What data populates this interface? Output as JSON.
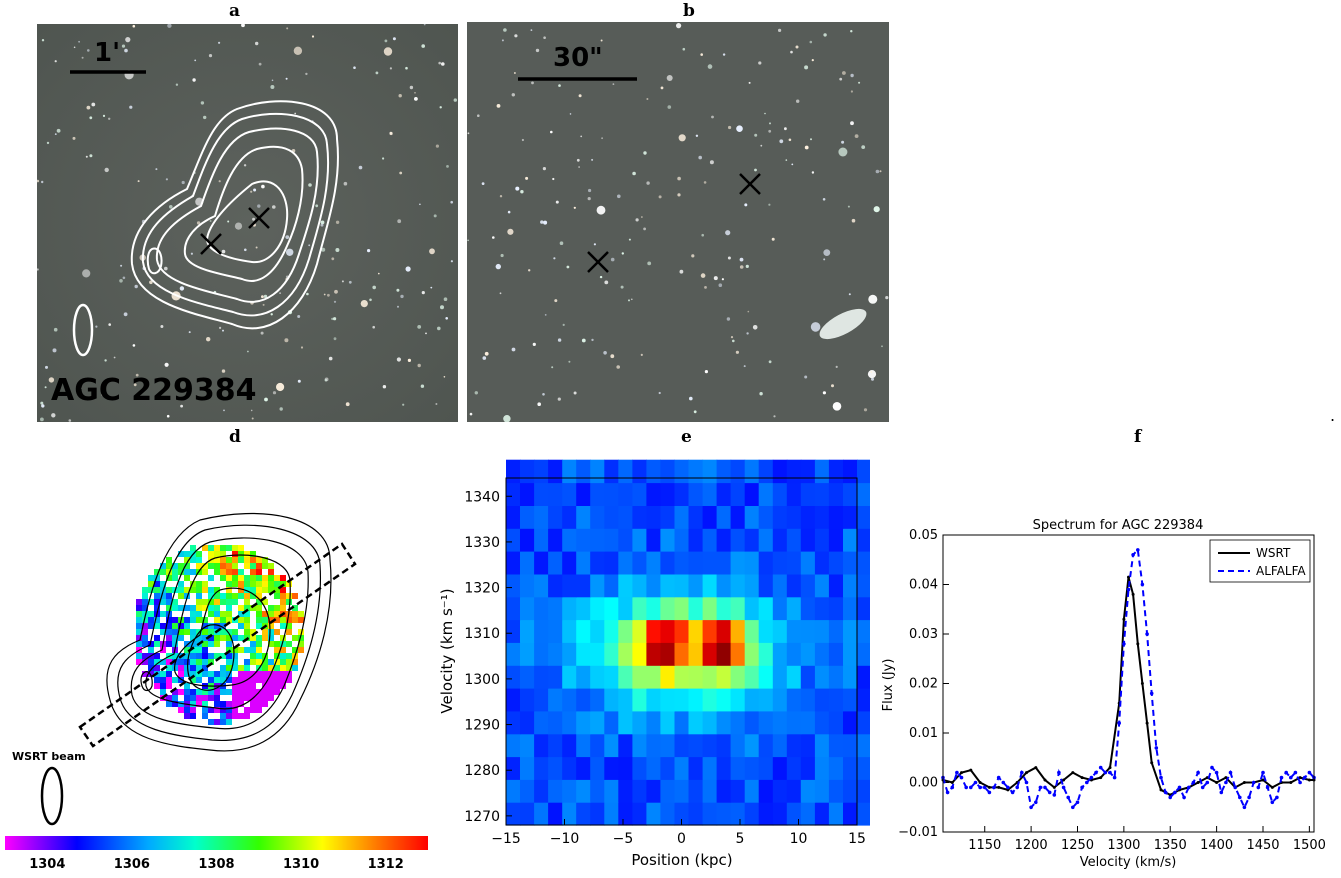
{
  "panel_labels": {
    "a": "a",
    "b": "b",
    "d": "d",
    "e": "e",
    "f": "f"
  },
  "panel_a": {
    "scale_label": "1'",
    "object_label": "AGC 229384"
  },
  "panel_b": {
    "scale_label": "30\""
  },
  "stray_mark": ".",
  "panel_d": {
    "beam_label": "WSRT beam",
    "colorbar_ticks": [
      "1304",
      "1306",
      "1308",
      "1310",
      "1312"
    ],
    "colorbar_range": [
      1303,
      1313
    ]
  },
  "panel_e": {
    "xlabel": "Position (kpc)",
    "ylabel": "Velocity (km s⁻¹)",
    "x_range": [
      -15,
      15
    ],
    "y_range": [
      1268,
      1344
    ],
    "x_ticks": [
      -15,
      -10,
      -5,
      0,
      5,
      10,
      15
    ],
    "x_tick_labels": [
      "−15",
      "−10",
      "−5",
      "0",
      "5",
      "10",
      "15"
    ],
    "y_ticks": [
      1270,
      1280,
      1290,
      1300,
      1310,
      1320,
      1330,
      1340
    ],
    "y_tick_labels": [
      "1270",
      "1280",
      "1290",
      "1300",
      "1310",
      "1320",
      "1330",
      "1340"
    ]
  },
  "chart_data": {
    "type": "line",
    "title": "Spectrum for AGC 229384",
    "xlabel": "Velocity (km/s)",
    "ylabel": "Flux (Jy)",
    "xlim": [
      1105,
      1505
    ],
    "ylim": [
      -0.01,
      0.05
    ],
    "x_ticks": [
      1150,
      1200,
      1250,
      1300,
      1350,
      1400,
      1450,
      1500
    ],
    "y_ticks": [
      -0.01,
      0.0,
      0.01,
      0.02,
      0.03,
      0.04,
      0.05
    ],
    "y_tick_labels": [
      "−0.01",
      "0.00",
      "0.01",
      "0.02",
      "0.03",
      "0.04",
      "0.05"
    ],
    "legend_position": "top-right",
    "series": [
      {
        "name": "WSRT",
        "color": "#000000",
        "style": "solid",
        "x": [
          1105,
          1115,
          1125,
          1135,
          1145,
          1155,
          1165,
          1175,
          1185,
          1195,
          1205,
          1215,
          1225,
          1235,
          1245,
          1255,
          1265,
          1275,
          1285,
          1295,
          1300,
          1305,
          1310,
          1315,
          1320,
          1325,
          1330,
          1340,
          1350,
          1360,
          1370,
          1380,
          1390,
          1400,
          1410,
          1420,
          1430,
          1440,
          1450,
          1460,
          1470,
          1480,
          1490,
          1500,
          1505
        ],
        "y": [
          0.0005,
          0.0,
          0.002,
          0.0025,
          0.0,
          -0.001,
          -0.001,
          -0.0015,
          0.0,
          0.002,
          0.003,
          0.0005,
          -0.001,
          0.0005,
          0.002,
          0.001,
          0.0005,
          0.001,
          0.003,
          0.016,
          0.033,
          0.0415,
          0.038,
          0.028,
          0.02,
          0.012,
          0.004,
          -0.0015,
          -0.0025,
          -0.0015,
          -0.001,
          0.0,
          0.001,
          0.0,
          0.001,
          -0.001,
          0.0,
          0.0,
          0.0005,
          -0.001,
          0.0,
          0.0,
          0.001,
          0.0005,
          0.0005
        ]
      },
      {
        "name": "ALFALFA",
        "color": "#0000ff",
        "style": "dashed",
        "x": [
          1105,
          1110,
          1115,
          1120,
          1125,
          1130,
          1135,
          1140,
          1145,
          1150,
          1155,
          1160,
          1165,
          1170,
          1175,
          1180,
          1185,
          1190,
          1195,
          1200,
          1205,
          1210,
          1215,
          1220,
          1225,
          1230,
          1235,
          1240,
          1245,
          1250,
          1255,
          1260,
          1265,
          1270,
          1275,
          1280,
          1285,
          1290,
          1295,
          1300,
          1305,
          1310,
          1315,
          1320,
          1325,
          1330,
          1335,
          1340,
          1345,
          1350,
          1355,
          1360,
          1365,
          1370,
          1375,
          1380,
          1385,
          1390,
          1395,
          1400,
          1405,
          1410,
          1415,
          1420,
          1425,
          1430,
          1435,
          1440,
          1445,
          1450,
          1455,
          1460,
          1465,
          1470,
          1475,
          1480,
          1485,
          1490,
          1495,
          1500,
          1505
        ],
        "y": [
          0.001,
          -0.002,
          -0.001,
          0.002,
          0.001,
          -0.001,
          -0.001,
          0.0,
          -0.001,
          -0.001,
          -0.002,
          -0.001,
          0.001,
          0.0,
          -0.001,
          -0.002,
          -0.001,
          0.002,
          0.0,
          -0.005,
          -0.004,
          -0.001,
          -0.001,
          -0.002,
          -0.0025,
          0.002,
          -0.001,
          -0.003,
          -0.005,
          -0.004,
          -0.001,
          0.0,
          0.001,
          0.002,
          0.003,
          0.002,
          0.002,
          0.001,
          0.012,
          0.028,
          0.039,
          0.046,
          0.047,
          0.04,
          0.03,
          0.018,
          0.007,
          0.001,
          -0.002,
          -0.003,
          -0.002,
          -0.001,
          -0.003,
          -0.001,
          0.0,
          0.002,
          -0.001,
          0.0,
          0.003,
          0.002,
          -0.002,
          0.0,
          0.002,
          -0.001,
          -0.003,
          -0.005,
          -0.003,
          0.0,
          -0.001,
          0.002,
          -0.001,
          -0.004,
          -0.003,
          0.001,
          0.002,
          0.001,
          0.002,
          0.0,
          0.001,
          0.002,
          0.001
        ]
      }
    ]
  }
}
